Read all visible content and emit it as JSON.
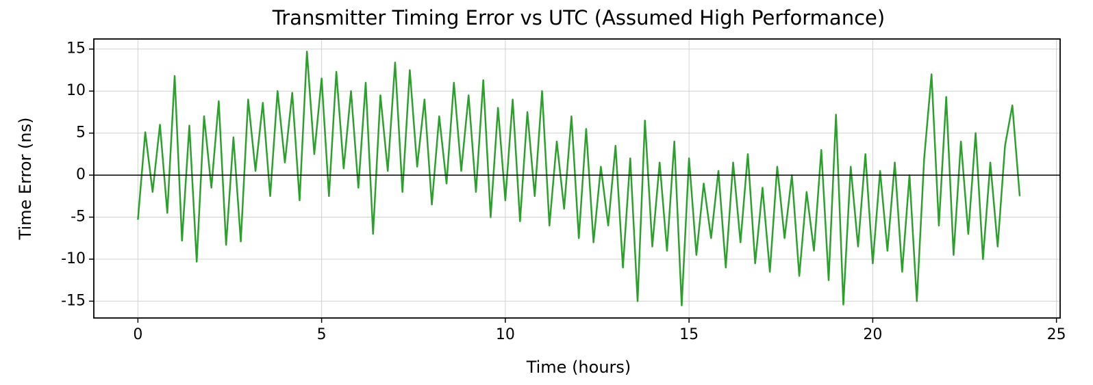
{
  "chart_data": {
    "type": "line",
    "title": "Transmitter Timing Error vs UTC (Assumed High Performance)",
    "x_label": "Time (hours)",
    "y_label": "Time Error (ns)",
    "x": [
      0,
      0.2,
      0.4,
      0.6,
      0.8,
      1,
      1.2,
      1.4,
      1.6,
      1.8,
      2,
      2.2,
      2.4,
      2.6,
      2.8,
      3,
      3.2,
      3.4,
      3.6,
      3.8,
      4,
      4.2,
      4.4,
      4.6,
      4.8,
      5,
      5.2,
      5.4,
      5.6,
      5.8,
      6,
      6.2,
      6.4,
      6.6,
      6.8,
      7,
      7.2,
      7.4,
      7.6,
      7.8,
      8,
      8.2,
      8.4,
      8.6,
      8.8,
      9,
      9.2,
      9.4,
      9.6,
      9.8,
      10,
      10.2,
      10.4,
      10.6,
      10.8,
      11,
      11.2,
      11.4,
      11.6,
      11.8,
      12,
      12.2,
      12.4,
      12.6,
      12.8,
      13,
      13.2,
      13.4,
      13.6,
      13.8,
      14,
      14.2,
      14.4,
      14.6,
      14.8,
      15,
      15.2,
      15.4,
      15.6,
      15.8,
      16,
      16.2,
      16.4,
      16.6,
      16.8,
      17,
      17.2,
      17.4,
      17.6,
      17.8,
      18,
      18.2,
      18.4,
      18.6,
      18.8,
      19,
      19.2,
      19.4,
      19.6,
      19.8,
      20,
      20.2,
      20.4,
      20.6,
      20.8,
      21,
      21.2,
      21.4,
      21.6,
      21.8,
      22,
      22.2,
      22.4,
      22.6,
      22.8,
      23,
      23.2,
      23.4,
      23.6,
      23.8,
      24
    ],
    "series": [
      {
        "name": "Time Error",
        "color": "#2ca02c",
        "values": [
          -5.3,
          5.1,
          -2.0,
          6.0,
          -4.5,
          11.8,
          -7.8,
          5.9,
          -10.3,
          7.0,
          -1.5,
          8.8,
          -8.3,
          4.5,
          -7.9,
          9.0,
          0.5,
          8.6,
          -2.5,
          10.0,
          1.5,
          9.8,
          -3.0,
          14.7,
          2.5,
          11.5,
          -2.5,
          12.3,
          0.8,
          10.0,
          -1.5,
          11.0,
          -7.0,
          9.5,
          0.5,
          13.4,
          -2.0,
          12.5,
          1.0,
          9.0,
          -3.5,
          7.0,
          -1.0,
          11.0,
          0.5,
          9.5,
          -2.0,
          11.3,
          -5.0,
          8.0,
          -3.0,
          9.0,
          -5.5,
          7.5,
          -2.5,
          10.0,
          -6.0,
          4.0,
          -4.0,
          7.0,
          -7.5,
          5.5,
          -8.0,
          1.0,
          -6.0,
          3.5,
          -11.0,
          2.0,
          -15.0,
          6.5,
          -8.5,
          1.5,
          -9.0,
          4.0,
          -15.5,
          2.0,
          -9.5,
          -1.0,
          -7.5,
          0.5,
          -11.0,
          1.5,
          -8.0,
          2.5,
          -10.5,
          -1.5,
          -11.5,
          1.0,
          -7.5,
          0.0,
          -12.0,
          -2.0,
          -9.0,
          3.0,
          -12.5,
          7.2,
          -15.4,
          1.0,
          -8.5,
          2.5,
          -10.5,
          0.5,
          -9.0,
          1.5,
          -11.5,
          0.0,
          -15.0,
          2.0,
          12.0,
          -6.0,
          9.3,
          -9.5,
          4.0,
          -7.0,
          5.0,
          -10.0,
          1.5,
          -8.5,
          3.5,
          8.3,
          -2.5
        ]
      }
    ],
    "hline": 0,
    "xlim": [
      -1.2,
      25.1
    ],
    "xticks": [
      0,
      5,
      10,
      15,
      20,
      25
    ],
    "ylim": [
      -17,
      16.2
    ],
    "yticks": [
      -15,
      -10,
      -5,
      0,
      5,
      10,
      15
    ],
    "grid": true
  }
}
